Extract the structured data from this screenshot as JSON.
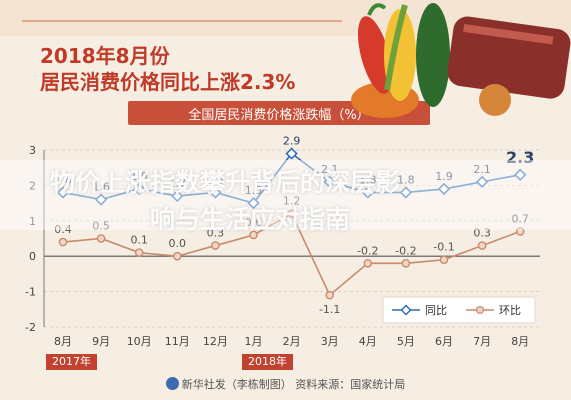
{
  "header": {
    "title_line1": "2018年8月份",
    "title_line2": "居民消费价格同比上涨2.3%",
    "banner": "全国居民消费价格涨跌幅（%）"
  },
  "overlay": {
    "line1": "物价上涨指数攀升背后的深层影",
    "line2": "响与生活应对指南"
  },
  "footer": {
    "text": "新华社发（李栋制图） 资料来源：国家统计局"
  },
  "year_labels": [
    "2017年",
    "2018年"
  ],
  "colors": {
    "yoy": "#2f6db5",
    "mom": "#c98a6c",
    "title": "#c03a28",
    "banner": "#c8503a"
  },
  "chart_data": {
    "type": "line",
    "categories": [
      "8月",
      "9月",
      "10月",
      "11月",
      "12月",
      "1月",
      "2月",
      "3月",
      "4月",
      "5月",
      "6月",
      "7月",
      "8月"
    ],
    "ylim": [
      -2,
      3
    ],
    "yticks": [
      "3",
      "2",
      "1",
      "0",
      "-1",
      "-2"
    ],
    "series": [
      {
        "name": "同比",
        "values": [
          1.8,
          1.6,
          1.9,
          1.7,
          1.8,
          1.5,
          2.9,
          2.1,
          1.8,
          1.8,
          1.9,
          2.1,
          2.3
        ],
        "labels": [
          "1.8",
          "1.6",
          "1.9",
          "1.7",
          "1.8",
          "1.5",
          "2.9",
          "2.1",
          "1.8",
          "1.8",
          "1.9",
          "2.1",
          "2.3"
        ],
        "color": "#2f6db5"
      },
      {
        "name": "环比",
        "values": [
          0.4,
          0.5,
          0.1,
          0.0,
          0.3,
          0.6,
          1.2,
          -1.1,
          -0.2,
          -0.2,
          -0.1,
          0.3,
          0.7
        ],
        "labels": [
          "0.4",
          "0.5",
          "0.1",
          "0.0",
          "0.3",
          "0.6",
          "1.2",
          "-1.1",
          "-0.2",
          "-0.2",
          "-0.1",
          "0.3",
          "0.7"
        ],
        "color": "#c98a6c"
      }
    ]
  }
}
